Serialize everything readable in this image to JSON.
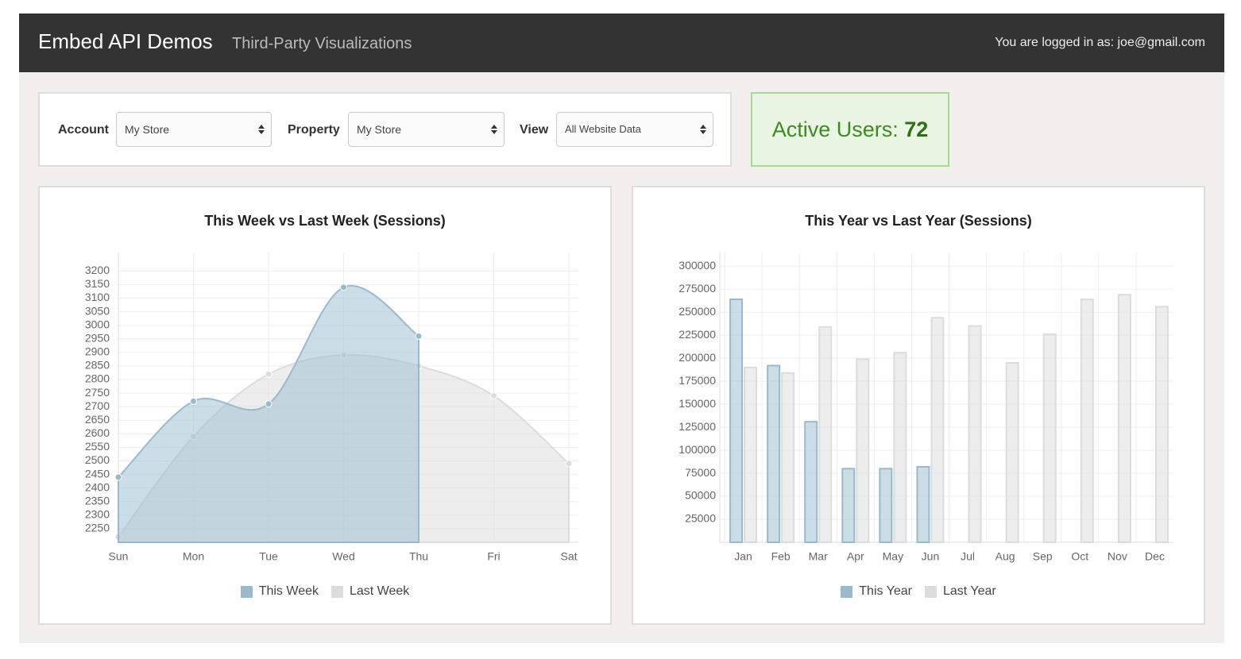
{
  "header": {
    "title": "Embed API Demos",
    "subtitle": "Third-Party Visualizations",
    "login": "You are logged in as: joe@gmail.com"
  },
  "controls": [
    {
      "label": "Account",
      "value": "My Store"
    },
    {
      "label": "Property",
      "value": "My Store"
    },
    {
      "label": "View",
      "value": "All Website Data"
    }
  ],
  "active_users": {
    "label": "Active Users:",
    "value": 72
  },
  "chart_data": [
    {
      "type": "line",
      "title": "This Week vs Last Week (Sessions)",
      "smooth": true,
      "grid": true,
      "categories": [
        "Sun",
        "Mon",
        "Tue",
        "Wed",
        "Thu",
        "Fri",
        "Sat"
      ],
      "series": [
        {
          "name": "This Week",
          "color": "#97bbcd",
          "values": [
            2440,
            2720,
            2710,
            3140,
            2960,
            null,
            null
          ]
        },
        {
          "name": "Last Week",
          "color": "#dcdcdc",
          "values": [
            2220,
            2590,
            2820,
            2890,
            2850,
            2740,
            2490
          ]
        }
      ],
      "ylim": [
        2200,
        3245
      ],
      "yticks": [
        2250,
        2300,
        2350,
        2400,
        2450,
        2500,
        2550,
        2600,
        2650,
        2700,
        2750,
        2800,
        2850,
        2900,
        2950,
        3000,
        3050,
        3100,
        3150,
        3200
      ],
      "legend": "bottom"
    },
    {
      "type": "bar",
      "title": "This Year vs Last Year (Sessions)",
      "grid": true,
      "categories": [
        "Jan",
        "Feb",
        "Mar",
        "Apr",
        "May",
        "Jun",
        "Jul",
        "Aug",
        "Sep",
        "Oct",
        "Nov",
        "Dec"
      ],
      "series": [
        {
          "name": "This Year",
          "color": "#97bbcd",
          "values": [
            264000,
            192000,
            131000,
            80000,
            80000,
            82000,
            null,
            null,
            null,
            null,
            null,
            null
          ]
        },
        {
          "name": "Last Year",
          "color": "#dcdcdc",
          "values": [
            190000,
            184000,
            234000,
            199000,
            206000,
            244000,
            235000,
            195000,
            226000,
            264000,
            269000,
            256000
          ]
        }
      ],
      "ylim": [
        0,
        308000
      ],
      "yticks": [
        25000,
        50000,
        75000,
        100000,
        125000,
        150000,
        175000,
        200000,
        225000,
        250000,
        275000,
        300000
      ],
      "legend": "bottom"
    }
  ]
}
